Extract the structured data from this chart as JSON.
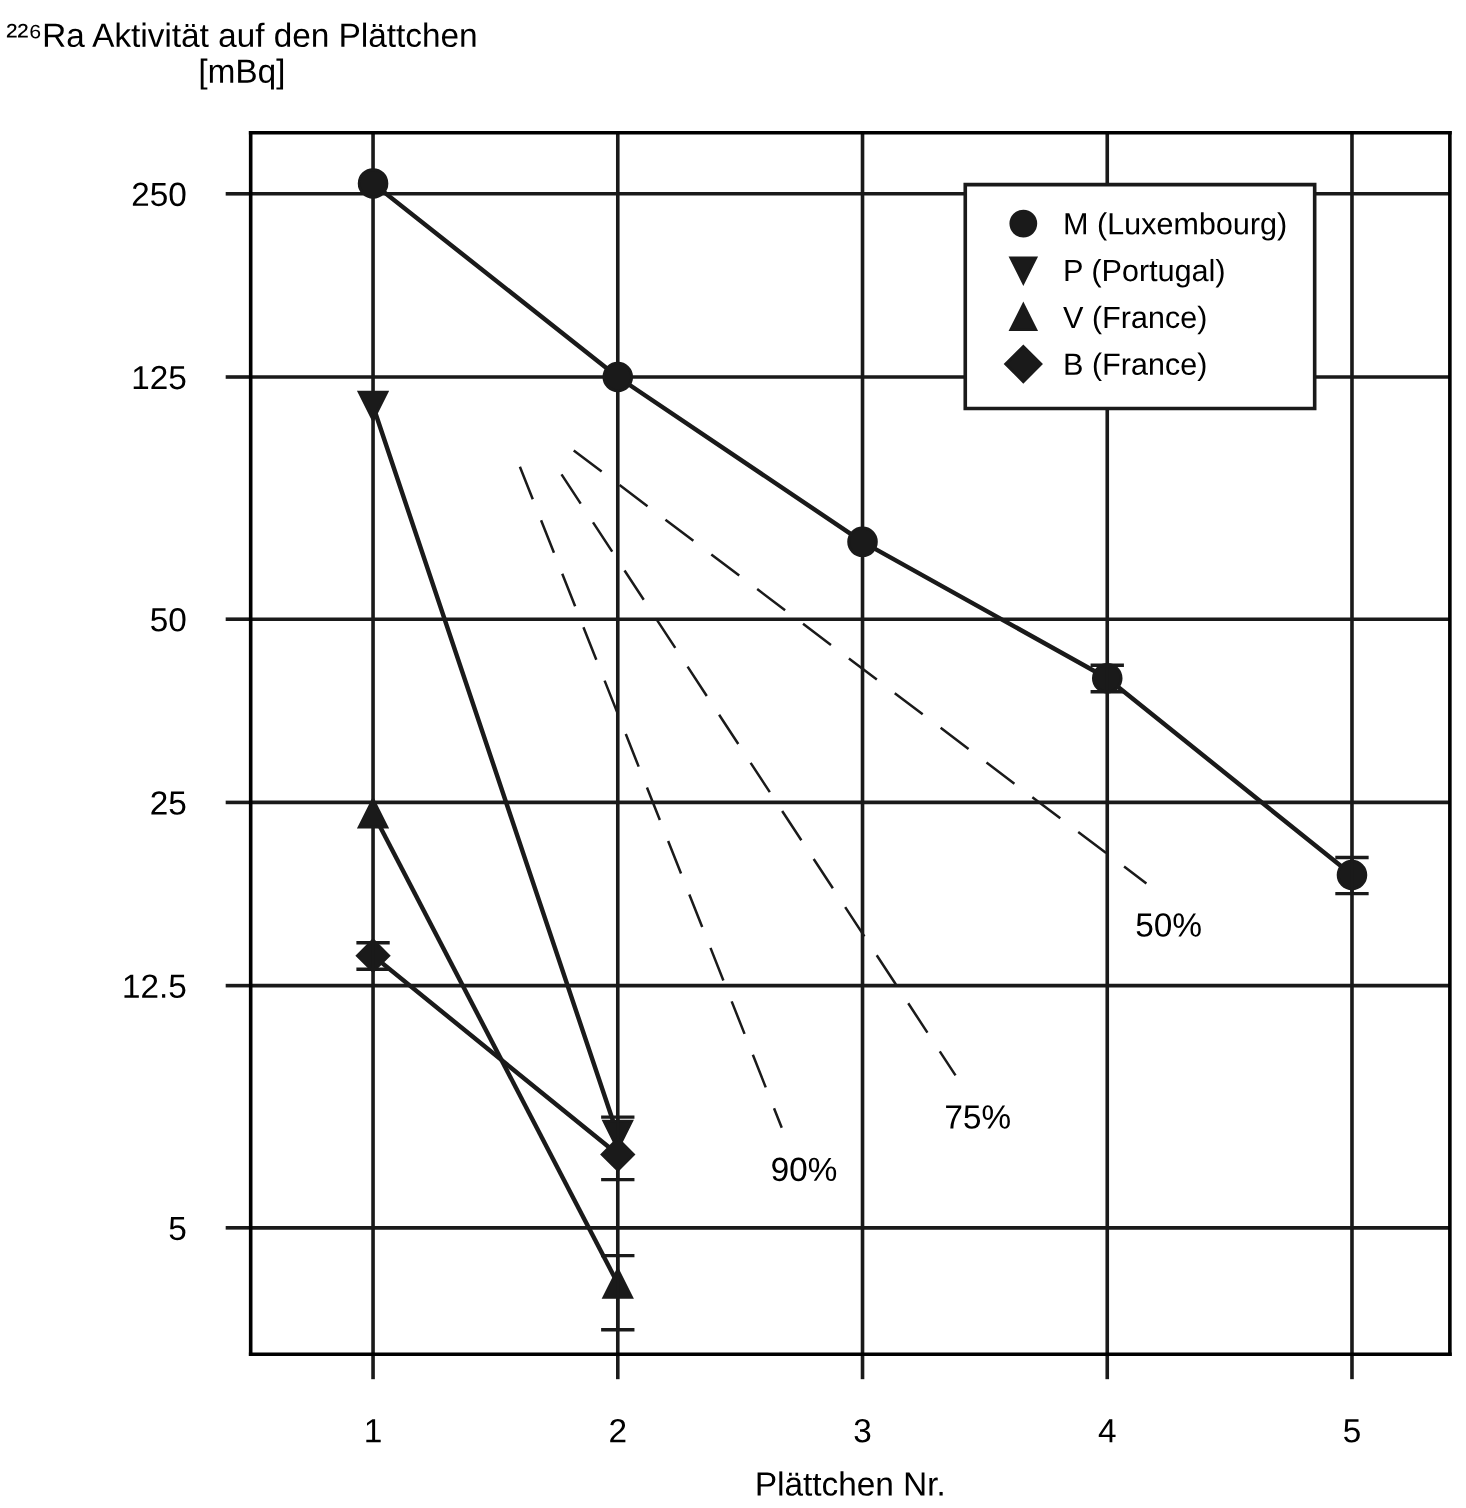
{
  "chart_data": {
    "type": "line",
    "xlabel": "Plättchen Nr.",
    "ylabel": "²²⁶Ra Aktivität auf den Plättchen [mBq]",
    "log": "y",
    "xlim": [
      0.5,
      5.4
    ],
    "xticks": [
      1,
      2,
      3,
      4,
      5
    ],
    "ylim": [
      3.1,
      315
    ],
    "yticks": [
      5,
      12.5,
      25,
      50,
      125,
      250
    ],
    "grid": true,
    "legend": "top right",
    "line_style": "solid",
    "series": [
      {
        "name": "M (Luxembourg)",
        "color": "#1a1a1a",
        "marker": "circle",
        "x": [
          1,
          2,
          3,
          4,
          5
        ],
        "values": [
          260,
          125,
          67,
          40,
          19
        ],
        "errors": [
          null,
          null,
          null,
          2,
          1.3
        ]
      },
      {
        "name": "P (Portugal)",
        "color": "#1a1a1a",
        "marker": "triangle_down",
        "x": [
          1,
          2
        ],
        "values": [
          112,
          7.1
        ],
        "errors": [
          null,
          [
            6.0,
            7.6
          ]
        ]
      },
      {
        "name": "V (France)",
        "color": "#1a1a1a",
        "marker": "triangle",
        "x": [
          1,
          2
        ],
        "values": [
          24,
          4.05
        ],
        "errors": [
          null,
          [
            3.4,
            4.5
          ]
        ]
      },
      {
        "name": "B (France)",
        "color": "#1a1a1a",
        "marker": "diamond",
        "x": [
          1,
          2
        ],
        "values": [
          14,
          6.6
        ],
        "errors": [
          0.7,
          null
        ]
      },
      {
        "name": "50%",
        "color": "#1a1a1a",
        "marker": "none",
        "line_style": "dashed",
        "x": [
          1.82,
          4.16
        ],
        "values": [
          94.7,
          18.4
        ]
      },
      {
        "name": "75%",
        "color": "#1a1a1a",
        "marker": "none",
        "line_style": "dashed",
        "x": [
          1.77,
          3.38
        ],
        "values": [
          86.5,
          8.9
        ]
      },
      {
        "name": "90%",
        "color": "#1a1a1a",
        "marker": "none",
        "line_style": "dashed",
        "x": [
          1.6,
          2.67
        ],
        "values": [
          89,
          7.3
        ]
      }
    ]
  }
}
